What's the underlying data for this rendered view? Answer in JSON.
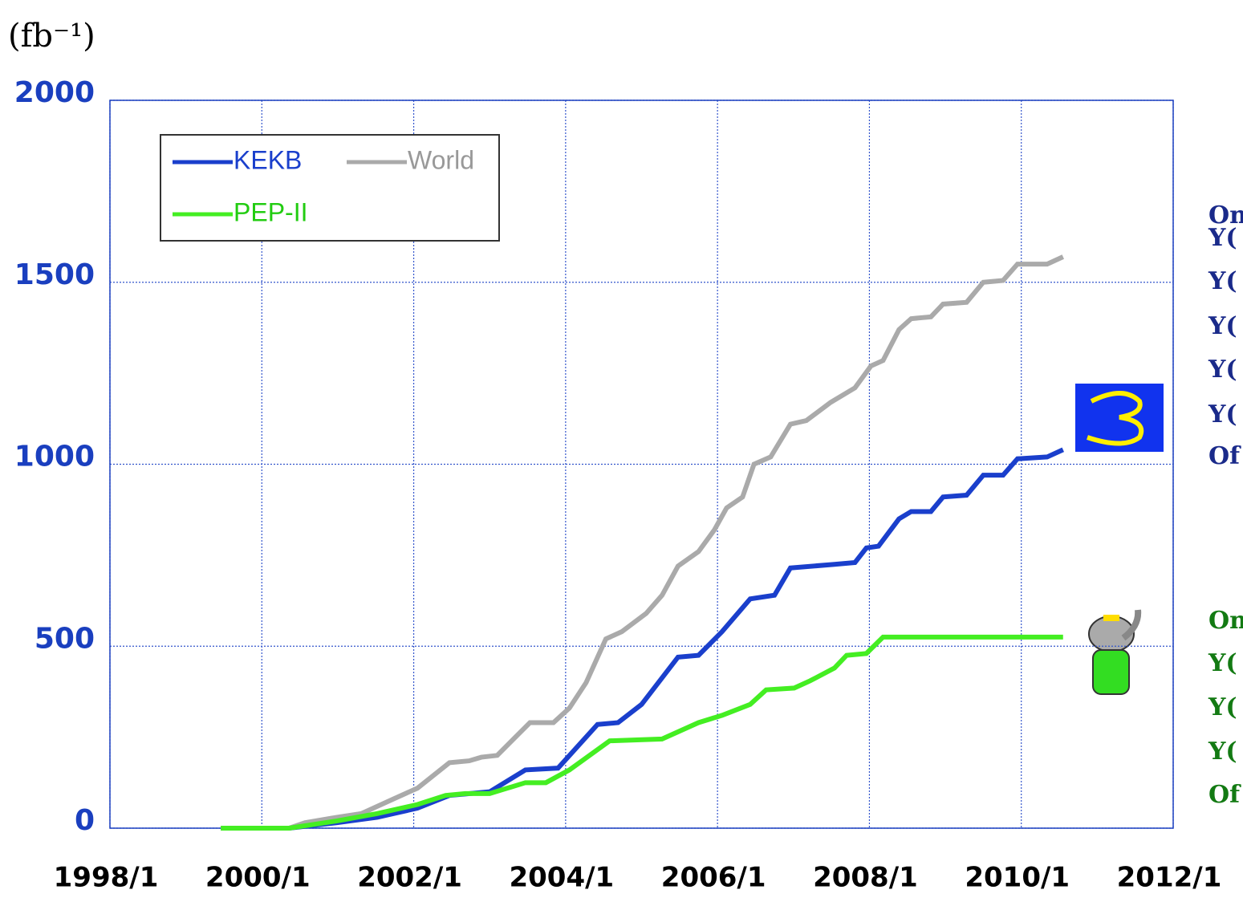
{
  "chart_data": {
    "type": "line",
    "y_label": "(fb⁻¹)",
    "xlim": [
      1998,
      2012
    ],
    "xticks": [
      {
        "value": 1998,
        "label": "1998/1"
      },
      {
        "value": 2000,
        "label": "2000/1"
      },
      {
        "value": 2002,
        "label": "2002/1"
      },
      {
        "value": 2004,
        "label": "2004/1"
      },
      {
        "value": 2006,
        "label": "2006/1"
      },
      {
        "value": 2008,
        "label": "2008/1"
      },
      {
        "value": 2010,
        "label": "2010/1"
      },
      {
        "value": 2012,
        "label": "2012/1"
      }
    ],
    "ylim": [
      0,
      2000
    ],
    "yticks": [
      0,
      500,
      1000,
      1500,
      2000
    ],
    "grid": true,
    "legend": "upper left",
    "series": [
      {
        "name": "KEKB",
        "color": "#1a3fcc",
        "x": [
          1999.46,
          2000.36,
          2000.99,
          2001.52,
          2002.05,
          2002.47,
          2003.0,
          2003.47,
          2003.9,
          2004.42,
          2004.69,
          2005.0,
          2005.48,
          2005.75,
          2006.06,
          2006.43,
          2006.75,
          2006.96,
          2007.54,
          2007.81,
          2007.96,
          2008.12,
          2008.39,
          2008.55,
          2008.81,
          2008.97,
          2009.28,
          2009.5,
          2009.76,
          2009.95,
          2010.34,
          2010.55
        ],
        "values": [
          0,
          0,
          15,
          30,
          55,
          90,
          100,
          160,
          165,
          285,
          290,
          340,
          470,
          475,
          540,
          630,
          640,
          715,
          725,
          730,
          770,
          775,
          850,
          870,
          870,
          910,
          915,
          970,
          970,
          1015,
          1020,
          1040
        ]
      },
      {
        "name": "World",
        "color": "#aaaaaa",
        "x": [
          1999.46,
          2000.36,
          2000.57,
          2000.99,
          2001.31,
          2001.73,
          2002.05,
          2002.47,
          2002.73,
          2002.89,
          2003.1,
          2003.53,
          2003.84,
          2004.05,
          2004.27,
          2004.53,
          2004.74,
          2005.06,
          2005.27,
          2005.48,
          2005.75,
          2005.96,
          2006.12,
          2006.33,
          2006.48,
          2006.7,
          2006.96,
          2007.17,
          2007.49,
          2007.81,
          2008.02,
          2008.18,
          2008.39,
          2008.55,
          2008.81,
          2008.97,
          2009.28,
          2009.5,
          2009.76,
          2009.95,
          2010.34,
          2010.55
        ],
        "values": [
          0,
          0,
          15,
          30,
          40,
          80,
          110,
          180,
          185,
          195,
          200,
          290,
          290,
          330,
          400,
          520,
          540,
          590,
          640,
          720,
          760,
          820,
          880,
          910,
          1000,
          1020,
          1110,
          1120,
          1170,
          1210,
          1270,
          1285,
          1370,
          1400,
          1405,
          1440,
          1445,
          1500,
          1505,
          1550,
          1550,
          1570
        ]
      },
      {
        "name": "PEP-II",
        "color": "#44ee22",
        "x": [
          1999.46,
          2000.36,
          2000.99,
          2001.52,
          2002.05,
          2002.42,
          2002.68,
          2003.0,
          2003.47,
          2003.74,
          2004.05,
          2004.58,
          2005.27,
          2005.75,
          2006.06,
          2006.43,
          2006.64,
          2007.01,
          2007.22,
          2007.54,
          2007.7,
          2007.96,
          2008.18,
          2010.55
        ],
        "values": [
          0,
          0,
          20,
          40,
          65,
          90,
          95,
          95,
          125,
          125,
          160,
          240,
          245,
          290,
          310,
          340,
          380,
          385,
          405,
          440,
          475,
          480,
          525,
          525
        ]
      }
    ],
    "annotations": [
      {
        "text": "On",
        "color": "#1a2a8a"
      },
      {
        "text": "Υ(",
        "color": "#1a2a8a"
      },
      {
        "text": "Υ(",
        "color": "#1a2a8a"
      },
      {
        "text": "Υ(",
        "color": "#1a2a8a"
      },
      {
        "text": "Υ(",
        "color": "#1a2a8a"
      },
      {
        "text": "Υ(",
        "color": "#1a2a8a"
      },
      {
        "text": "Of",
        "color": "#1a2a8a"
      },
      {
        "text": "On",
        "color": "#137a13"
      },
      {
        "text": "Υ(",
        "color": "#137a13"
      },
      {
        "text": "Υ(",
        "color": "#137a13"
      },
      {
        "text": "Υ(",
        "color": "#137a13"
      },
      {
        "text": "Of",
        "color": "#137a13"
      }
    ]
  }
}
